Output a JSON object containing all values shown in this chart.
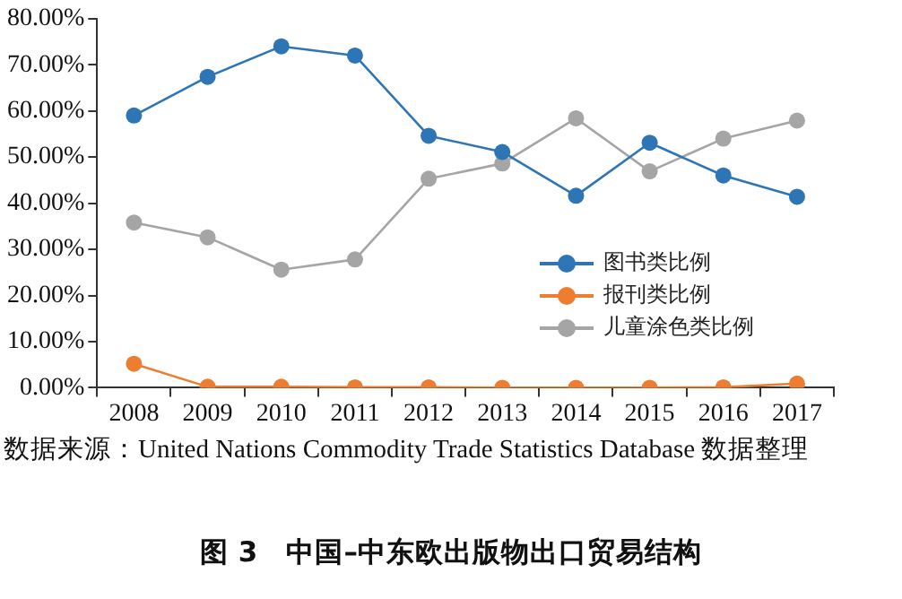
{
  "chart_data": {
    "type": "line",
    "title": "图 3　中国–中东欧出版物出口贸易结构",
    "annotations": [
      "数据来源：United Nations Commodity Trade Statistics Database 数据整理"
    ],
    "categories": [
      "2008",
      "2009",
      "2010",
      "2011",
      "2012",
      "2013",
      "2014",
      "2015",
      "2016",
      "2017"
    ],
    "series": [
      {
        "name": "图书类比例",
        "color": "#2e75b6",
        "values": [
          59.0,
          67.4,
          74.0,
          72.0,
          54.6,
          51.1,
          41.6,
          53.1,
          46.0,
          41.4
        ]
      },
      {
        "name": "报刊类比例",
        "color": "#ed7d31",
        "values": [
          5.2,
          0.2,
          0.2,
          0.1,
          0.1,
          0.0,
          0.0,
          0.0,
          0.1,
          0.9
        ]
      },
      {
        "name": "儿童涂色类比例",
        "color": "#a5a5a5",
        "values": [
          35.8,
          32.6,
          25.6,
          27.8,
          45.3,
          48.6,
          58.4,
          46.9,
          54.0,
          57.9
        ]
      }
    ],
    "ylim": [
      0,
      80
    ],
    "yticks": [
      {
        "value": 0,
        "label": "0.00%"
      },
      {
        "value": 10,
        "label": "10.00%"
      },
      {
        "value": 20,
        "label": "20.00%"
      },
      {
        "value": 30,
        "label": "30.00%"
      },
      {
        "value": 40,
        "label": "40.00%"
      },
      {
        "value": 50,
        "label": "50.00%"
      },
      {
        "value": 60,
        "label": "60.00%"
      },
      {
        "value": 70,
        "label": "70.00%"
      },
      {
        "value": 80,
        "label": "80.00%"
      }
    ],
    "grid": false,
    "legend": "center right",
    "marker": "circle",
    "line_style": "solid"
  }
}
